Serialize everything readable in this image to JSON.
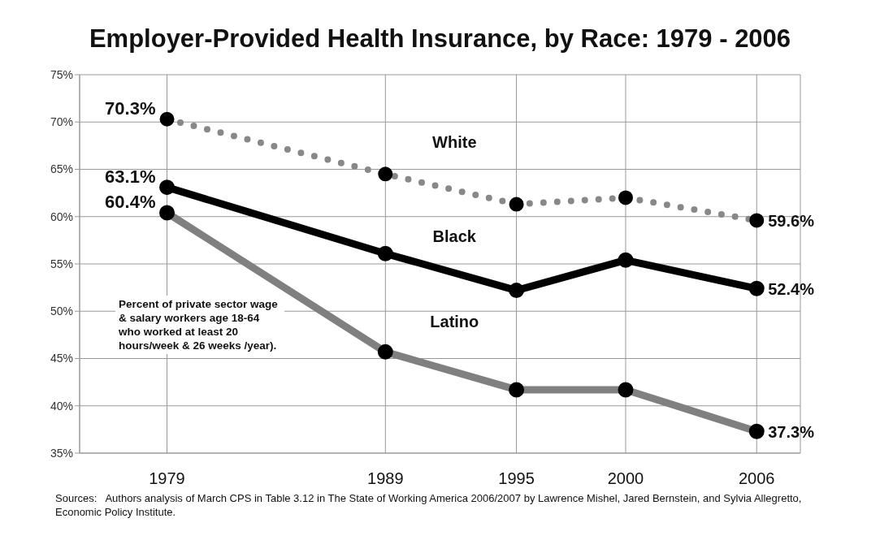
{
  "chart_data": {
    "type": "line",
    "title": "Employer-Provided Health Insurance, by Race: 1979 - 2006",
    "x": [
      1979,
      1989,
      1995,
      2000,
      2006
    ],
    "xlim": [
      1975,
      2008
    ],
    "xticks": [
      1979,
      1989,
      1995,
      2000,
      2006
    ],
    "ylim": [
      35,
      75
    ],
    "yticks": [
      {
        "value": 35,
        "label": "35%"
      },
      {
        "value": 40,
        "label": "40%"
      },
      {
        "value": 45,
        "label": "45%"
      },
      {
        "value": 50,
        "label": "50%"
      },
      {
        "value": 55,
        "label": "55%"
      },
      {
        "value": 60,
        "label": "60%"
      },
      {
        "value": 65,
        "label": "65%"
      },
      {
        "value": 70,
        "label": "70%"
      },
      {
        "value": 75,
        "label": "75%"
      }
    ],
    "grid": true,
    "legend": false,
    "marker": "circle",
    "series": [
      {
        "name": "White",
        "color": "#888888",
        "line_style": "dotted",
        "values": [
          70.3,
          64.5,
          61.3,
          62.0,
          59.6
        ],
        "value_labels": [
          "70.3%",
          null,
          null,
          null,
          "59.6%"
        ]
      },
      {
        "name": "Black",
        "color": "#000000",
        "line_style": "solid",
        "values": [
          63.1,
          56.1,
          52.2,
          55.4,
          52.4
        ],
        "value_labels": [
          "63.1%",
          null,
          null,
          null,
          "52.4%"
        ]
      },
      {
        "name": "Latino",
        "color": "#808080",
        "line_style": "solid",
        "values": [
          60.4,
          45.7,
          41.7,
          41.7,
          37.3
        ],
        "value_labels": [
          "60.4%",
          null,
          null,
          null,
          "37.3%"
        ]
      }
    ],
    "annotations": [
      "Percent of private sector wage & salary workers age 18-64 who worked at least 20 hours/week & 26 weeks /year).",
      "Sources:   Authors analysis of March CPS in Table 3.12 in The State of Working America 2006/2007 by Lawrence Mishel, Jared Bernstein, and Sylvia Allegretto, Economic Policy Institute."
    ]
  }
}
